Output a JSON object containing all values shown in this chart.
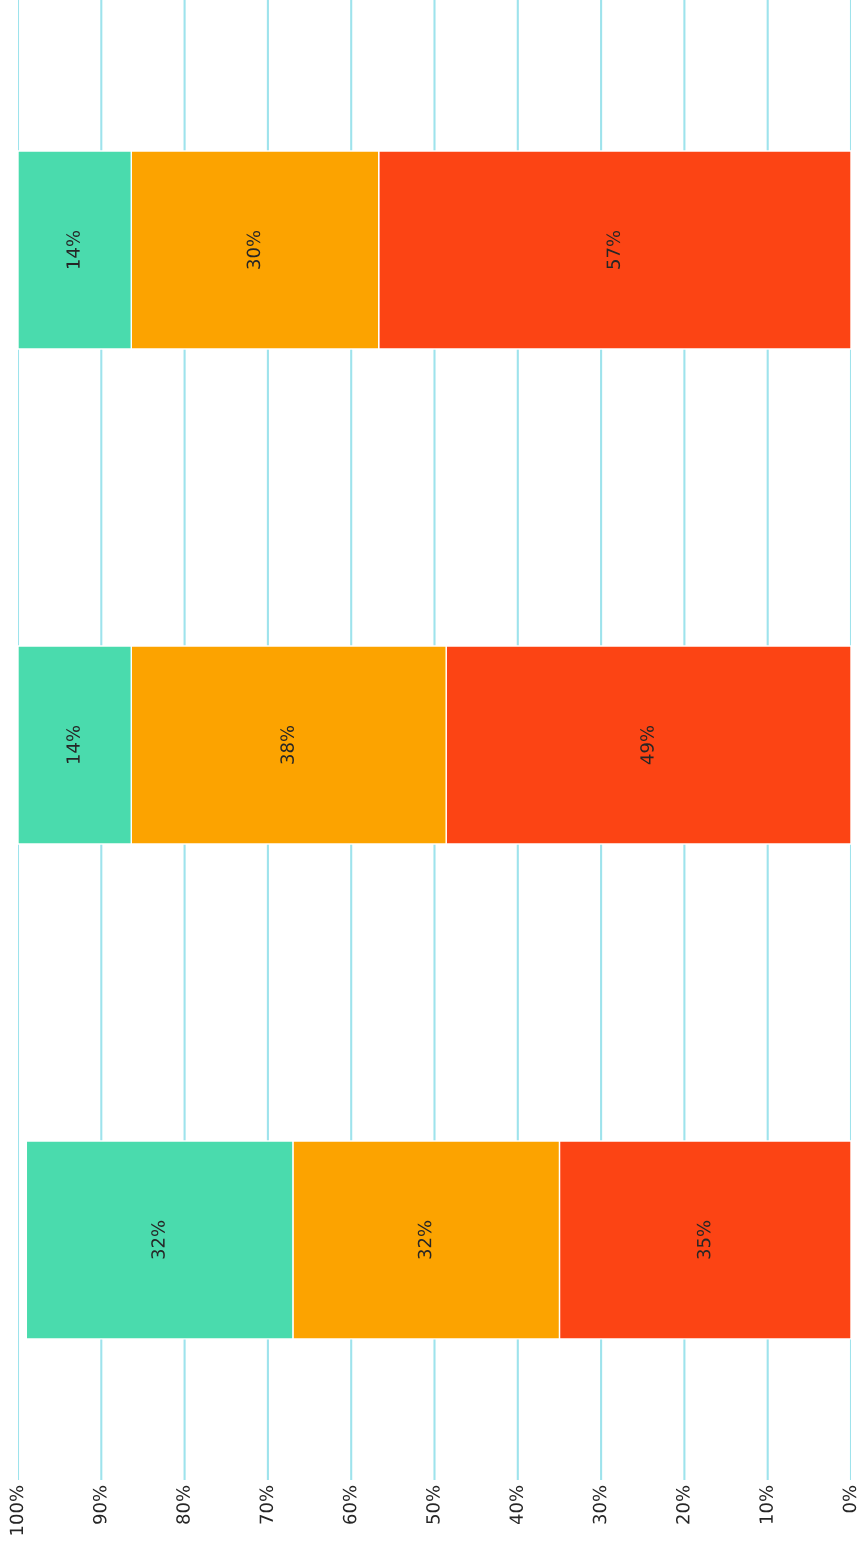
{
  "chart_data": {
    "type": "bar",
    "orientation": "horizontal",
    "stacked": true,
    "categories": [
      null,
      null,
      null
    ],
    "series": [
      {
        "color": "#fc4414",
        "values": [
          56.7,
          48.6,
          35
        ],
        "value_labels": [
          "57%",
          "49%",
          "35%"
        ]
      },
      {
        "color": "#fca300",
        "values": [
          29.7,
          37.8,
          32
        ],
        "value_labels": [
          "30%",
          "38%",
          "32%"
        ]
      },
      {
        "color": "#4adbad",
        "values": [
          13.6,
          13.6,
          32
        ],
        "value_labels": [
          "14%",
          "14%",
          "32%"
        ]
      }
    ],
    "xlim": [
      100,
      0
    ],
    "xticks": [
      {
        "value": 100,
        "label": "100%"
      },
      {
        "value": 90,
        "label": "90%"
      },
      {
        "value": 80,
        "label": "80%"
      },
      {
        "value": 70,
        "label": "70%"
      },
      {
        "value": 60,
        "label": "60%"
      },
      {
        "value": 50,
        "label": "50%"
      },
      {
        "value": 40,
        "label": "40%"
      },
      {
        "value": 30,
        "label": "30%"
      },
      {
        "value": 20,
        "label": "20%"
      },
      {
        "value": 10,
        "label": "10%"
      },
      {
        "value": 0,
        "label": "0%"
      }
    ],
    "grid": "x"
  }
}
